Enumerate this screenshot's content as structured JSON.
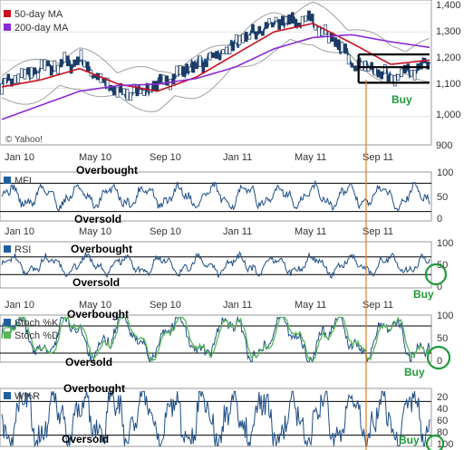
{
  "chart_data": [
    {
      "type": "line",
      "panel": "price",
      "legend": [
        {
          "name": "50-day MA",
          "color": "#c8101e"
        },
        {
          "name": "200-day MA",
          "color": "#8a2ad4"
        }
      ],
      "x_ticks": [
        "Jan 10",
        "May 10",
        "Sep 10",
        "Jan 11",
        "May 11",
        "Sep 11"
      ],
      "y_ticks": [
        "1,400",
        "1,300",
        "1,200",
        "1,100",
        "1,000",
        "900"
      ],
      "ylim": [
        900,
        1400
      ],
      "watermark": "© Yahoo!",
      "annotation": "Buy",
      "levels": [
        1220,
        1175,
        1120
      ],
      "series": [
        {
          "name": "Price",
          "x": [
            0,
            2,
            4,
            6,
            8,
            10,
            12,
            14,
            16,
            18,
            20,
            22
          ],
          "y": [
            1115,
            1165,
            1200,
            1075,
            1110,
            1185,
            1255,
            1330,
            1340,
            1200,
            1140,
            1190
          ]
        },
        {
          "name": "50-day MA",
          "x": [
            0,
            2,
            4,
            6,
            8,
            10,
            12,
            14,
            16,
            18,
            20,
            22
          ],
          "y": [
            1105,
            1130,
            1170,
            1115,
            1090,
            1140,
            1220,
            1300,
            1330,
            1260,
            1185,
            1200
          ]
        },
        {
          "name": "200-day MA",
          "x": [
            0,
            2,
            4,
            6,
            8,
            10,
            12,
            14,
            16,
            18,
            20,
            22
          ],
          "y": [
            990,
            1040,
            1090,
            1110,
            1115,
            1135,
            1175,
            1240,
            1280,
            1290,
            1265,
            1245
          ]
        }
      ]
    },
    {
      "type": "line",
      "panel": "mfi",
      "series": [
        {
          "name": "MFI"
        }
      ],
      "y_ticks": [
        "100",
        "50",
        "0"
      ],
      "ylim": [
        0,
        100
      ],
      "levels": [
        80,
        20
      ],
      "labels": [
        "Overbought",
        "Oversold"
      ]
    },
    {
      "type": "line",
      "panel": "rsi",
      "series": [
        {
          "name": "RSI"
        }
      ],
      "x_ticks": [
        "Jan 10",
        "May 10",
        "Sep 10",
        "Jan 11",
        "May 11",
        "Sep 11"
      ],
      "y_ticks": [
        "100",
        "50",
        "0"
      ],
      "ylim": [
        0,
        100
      ],
      "levels": [
        70,
        30
      ],
      "labels": [
        "Overbought",
        "Oversold"
      ],
      "annotation": "Buy"
    },
    {
      "type": "line",
      "panel": "stoch",
      "series": [
        {
          "name": "Stoch %K",
          "color": "#1f5fa0"
        },
        {
          "name": "Stoch %D",
          "color": "#59b65a"
        }
      ],
      "x_ticks": [
        "Jan 10",
        "May 10",
        "Sep 10",
        "Jan 11",
        "May 11",
        "Sep 11"
      ],
      "y_ticks": [
        "100",
        "50",
        "0"
      ],
      "ylim": [
        0,
        100
      ],
      "levels": [
        80,
        20
      ],
      "labels": [
        "Overbought",
        "Oversold"
      ],
      "annotation": "Buy"
    },
    {
      "type": "line",
      "panel": "williams",
      "series": [
        {
          "name": "W%R"
        }
      ],
      "y_ticks": [
        "20",
        "40",
        "60",
        "80",
        "100"
      ],
      "ylim": [
        0,
        100
      ],
      "levels": [
        20,
        80
      ],
      "labels": [
        "Overbought",
        "Oversold"
      ],
      "annotation": "Buy"
    }
  ]
}
